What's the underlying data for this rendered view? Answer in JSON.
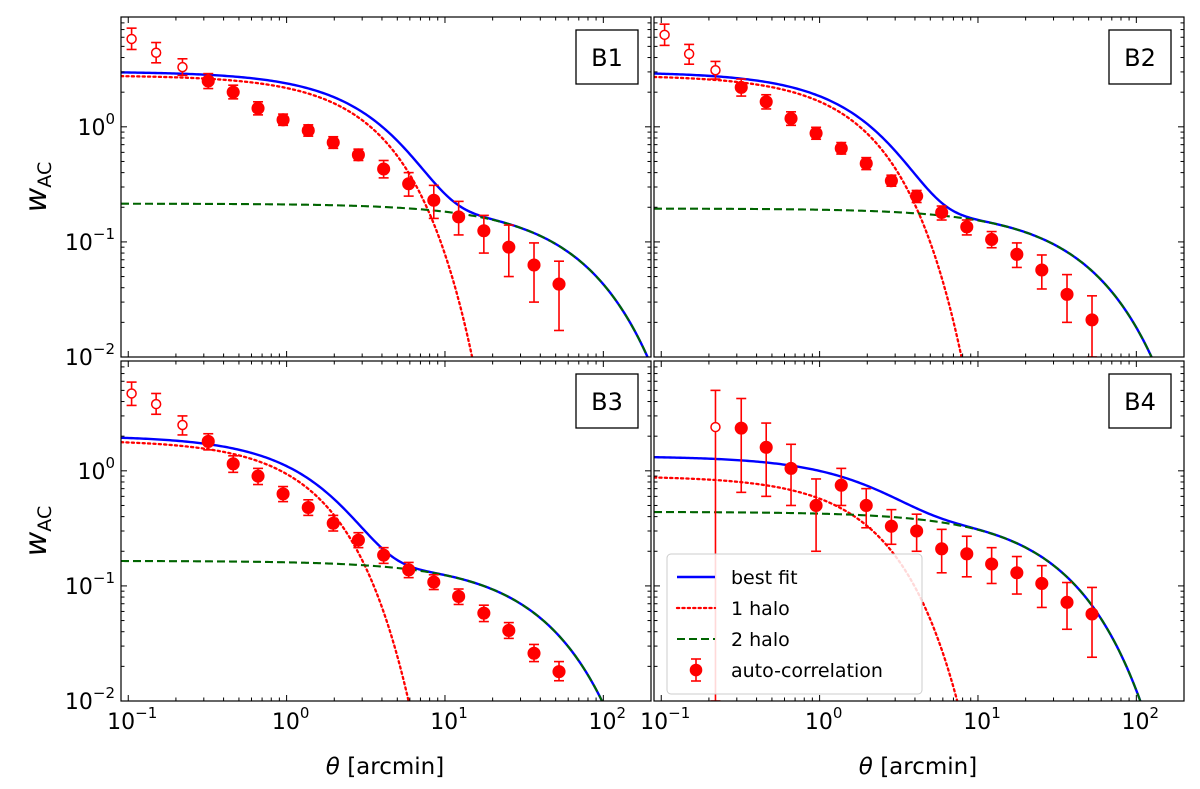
{
  "colors": {
    "best_fit": "#0000ff",
    "one_halo": "#ff0000",
    "two_halo": "#006400",
    "data": "#ff0000"
  },
  "chart_data": {
    "type": "line",
    "xlabel_symbol": "θ",
    "xlabel_unit": "[arcmin]",
    "ylabel_base": "w",
    "ylabel_sub": "AC",
    "xscale": "log",
    "yscale": "log",
    "xlim": [
      0.09,
      200
    ],
    "ylim": [
      0.01,
      9
    ],
    "x_ticks": [
      {
        "base": "10",
        "exp": "−1"
      },
      {
        "base": "10",
        "exp": "0"
      },
      {
        "base": "10",
        "exp": "1"
      },
      {
        "base": "10",
        "exp": "2"
      }
    ],
    "y_ticks": [
      {
        "base": "10",
        "exp": "0"
      },
      {
        "base": "10",
        "exp": "−1"
      },
      {
        "base": "10",
        "exp": "−2"
      }
    ],
    "legend": {
      "location": "lower-left of panel B4",
      "entries": [
        {
          "label": "best fit",
          "style": "solid"
        },
        {
          "label": "1 halo",
          "style": "dotted"
        },
        {
          "label": "2 halo",
          "style": "dashed"
        },
        {
          "label": "auto-correlation",
          "style": "marker"
        }
      ]
    },
    "panels": [
      {
        "label": "B1",
        "model": {
          "one_halo_amp": 2.8,
          "one_halo_cut": 3.3,
          "two_halo_amp": 0.215,
          "two_halo_cut": 62
        },
        "points": [
          {
            "x": 0.105,
            "y": 5.8,
            "err_up": 1.4,
            "err_down": 1.1,
            "open": true
          },
          {
            "x": 0.15,
            "y": 4.4,
            "err_up": 1.0,
            "err_down": 0.8,
            "open": true
          },
          {
            "x": 0.22,
            "y": 3.3,
            "err_up": 0.6,
            "err_down": 0.5,
            "open": true
          },
          {
            "x": 0.32,
            "y": 2.5,
            "err_up": 0.4,
            "err_down": 0.35,
            "open": false
          },
          {
            "x": 0.46,
            "y": 2.0,
            "err_up": 0.3,
            "err_down": 0.25,
            "open": false
          },
          {
            "x": 0.66,
            "y": 1.45,
            "err_up": 0.2,
            "err_down": 0.18,
            "open": false
          },
          {
            "x": 0.95,
            "y": 1.15,
            "err_up": 0.14,
            "err_down": 0.12,
            "open": false
          },
          {
            "x": 1.37,
            "y": 0.93,
            "err_up": 0.11,
            "err_down": 0.1,
            "open": false
          },
          {
            "x": 1.97,
            "y": 0.73,
            "err_up": 0.09,
            "err_down": 0.08,
            "open": false
          },
          {
            "x": 2.84,
            "y": 0.57,
            "err_up": 0.07,
            "err_down": 0.06,
            "open": false
          },
          {
            "x": 4.1,
            "y": 0.43,
            "err_up": 0.08,
            "err_down": 0.07,
            "open": false
          },
          {
            "x": 5.9,
            "y": 0.32,
            "err_up": 0.08,
            "err_down": 0.07,
            "open": false
          },
          {
            "x": 8.5,
            "y": 0.23,
            "err_up": 0.08,
            "err_down": 0.07,
            "open": false
          },
          {
            "x": 12.2,
            "y": 0.165,
            "err_up": 0.06,
            "err_down": 0.05,
            "open": false
          },
          {
            "x": 17.6,
            "y": 0.125,
            "err_up": 0.045,
            "err_down": 0.045,
            "open": false
          },
          {
            "x": 25.3,
            "y": 0.09,
            "err_up": 0.05,
            "err_down": 0.04,
            "open": false
          },
          {
            "x": 36.5,
            "y": 0.063,
            "err_up": 0.035,
            "err_down": 0.033,
            "open": false
          },
          {
            "x": 52.5,
            "y": 0.043,
            "err_up": 0.025,
            "err_down": 0.026,
            "open": false
          }
        ]
      },
      {
        "label": "B2",
        "model": {
          "one_halo_amp": 2.8,
          "one_halo_cut": 1.75,
          "two_halo_amp": 0.195,
          "two_halo_cut": 42
        },
        "points": [
          {
            "x": 0.105,
            "y": 6.3,
            "err_up": 1.5,
            "err_down": 1.2,
            "open": true
          },
          {
            "x": 0.15,
            "y": 4.3,
            "err_up": 0.9,
            "err_down": 0.8,
            "open": true
          },
          {
            "x": 0.22,
            "y": 3.1,
            "err_up": 0.6,
            "err_down": 0.5,
            "open": true
          },
          {
            "x": 0.32,
            "y": 2.2,
            "err_up": 0.4,
            "err_down": 0.35,
            "open": false
          },
          {
            "x": 0.46,
            "y": 1.65,
            "err_up": 0.25,
            "err_down": 0.22,
            "open": false
          },
          {
            "x": 0.66,
            "y": 1.18,
            "err_up": 0.17,
            "err_down": 0.15,
            "open": false
          },
          {
            "x": 0.95,
            "y": 0.88,
            "err_up": 0.11,
            "err_down": 0.1,
            "open": false
          },
          {
            "x": 1.37,
            "y": 0.65,
            "err_up": 0.08,
            "err_down": 0.07,
            "open": false
          },
          {
            "x": 1.97,
            "y": 0.48,
            "err_up": 0.06,
            "err_down": 0.055,
            "open": false
          },
          {
            "x": 2.84,
            "y": 0.34,
            "err_up": 0.04,
            "err_down": 0.035,
            "open": false
          },
          {
            "x": 4.1,
            "y": 0.25,
            "err_up": 0.03,
            "err_down": 0.03,
            "open": false
          },
          {
            "x": 5.9,
            "y": 0.18,
            "err_up": 0.025,
            "err_down": 0.025,
            "open": false
          },
          {
            "x": 8.5,
            "y": 0.135,
            "err_up": 0.02,
            "err_down": 0.02,
            "open": false
          },
          {
            "x": 12.2,
            "y": 0.105,
            "err_up": 0.018,
            "err_down": 0.016,
            "open": false
          },
          {
            "x": 17.6,
            "y": 0.078,
            "err_up": 0.02,
            "err_down": 0.018,
            "open": false
          },
          {
            "x": 25.3,
            "y": 0.057,
            "err_up": 0.02,
            "err_down": 0.018,
            "open": false
          },
          {
            "x": 36.5,
            "y": 0.035,
            "err_up": 0.017,
            "err_down": 0.015,
            "open": false
          },
          {
            "x": 52.5,
            "y": 0.021,
            "err_up": 0.013,
            "err_down": 0.011,
            "open": false
          }
        ]
      },
      {
        "label": "B3",
        "model": {
          "one_halo_amp": 1.85,
          "one_halo_cut": 1.4,
          "two_halo_amp": 0.165,
          "two_halo_cut": 35
        },
        "points": [
          {
            "x": 0.105,
            "y": 4.7,
            "err_up": 1.2,
            "err_down": 1.0,
            "open": true
          },
          {
            "x": 0.15,
            "y": 3.8,
            "err_up": 0.9,
            "err_down": 0.7,
            "open": true
          },
          {
            "x": 0.22,
            "y": 2.5,
            "err_up": 0.5,
            "err_down": 0.45,
            "open": true
          },
          {
            "x": 0.32,
            "y": 1.8,
            "err_up": 0.3,
            "err_down": 0.28,
            "open": false
          },
          {
            "x": 0.46,
            "y": 1.15,
            "err_up": 0.2,
            "err_down": 0.18,
            "open": false
          },
          {
            "x": 0.66,
            "y": 0.9,
            "err_up": 0.15,
            "err_down": 0.14,
            "open": false
          },
          {
            "x": 0.95,
            "y": 0.63,
            "err_up": 0.1,
            "err_down": 0.09,
            "open": false
          },
          {
            "x": 1.37,
            "y": 0.48,
            "err_up": 0.08,
            "err_down": 0.07,
            "open": false
          },
          {
            "x": 1.97,
            "y": 0.35,
            "err_up": 0.06,
            "err_down": 0.05,
            "open": false
          },
          {
            "x": 2.84,
            "y": 0.25,
            "err_up": 0.04,
            "err_down": 0.035,
            "open": false
          },
          {
            "x": 4.1,
            "y": 0.185,
            "err_up": 0.03,
            "err_down": 0.028,
            "open": false
          },
          {
            "x": 5.9,
            "y": 0.138,
            "err_up": 0.022,
            "err_down": 0.02,
            "open": false
          },
          {
            "x": 8.5,
            "y": 0.108,
            "err_up": 0.017,
            "err_down": 0.015,
            "open": false
          },
          {
            "x": 12.2,
            "y": 0.081,
            "err_up": 0.013,
            "err_down": 0.012,
            "open": false
          },
          {
            "x": 17.6,
            "y": 0.058,
            "err_up": 0.01,
            "err_down": 0.009,
            "open": false
          },
          {
            "x": 25.3,
            "y": 0.041,
            "err_up": 0.007,
            "err_down": 0.006,
            "open": false
          },
          {
            "x": 36.5,
            "y": 0.026,
            "err_up": 0.005,
            "err_down": 0.004,
            "open": false
          },
          {
            "x": 52.5,
            "y": 0.018,
            "err_up": 0.004,
            "err_down": 0.003,
            "open": false
          }
        ]
      },
      {
        "label": "B4",
        "model": {
          "one_halo_amp": 0.9,
          "one_halo_cut": 2.0,
          "two_halo_amp": 0.44,
          "two_halo_cut": 28
        },
        "points": [
          {
            "x": 0.22,
            "y": 2.4,
            "err_up": 2.6,
            "err_down": 2.39,
            "open": true
          },
          {
            "x": 0.32,
            "y": 2.35,
            "err_up": 1.9,
            "err_down": 1.7,
            "open": false
          },
          {
            "x": 0.46,
            "y": 1.6,
            "err_up": 1.0,
            "err_down": 1.0,
            "open": false
          },
          {
            "x": 0.66,
            "y": 1.05,
            "err_up": 0.65,
            "err_down": 0.55,
            "open": false
          },
          {
            "x": 0.95,
            "y": 0.5,
            "err_up": 0.35,
            "err_down": 0.3,
            "open": false
          },
          {
            "x": 1.37,
            "y": 0.75,
            "err_up": 0.3,
            "err_down": 0.25,
            "open": false
          },
          {
            "x": 1.97,
            "y": 0.5,
            "err_up": 0.2,
            "err_down": 0.18,
            "open": false
          },
          {
            "x": 2.84,
            "y": 0.33,
            "err_up": 0.13,
            "err_down": 0.1,
            "open": false
          },
          {
            "x": 4.1,
            "y": 0.3,
            "err_up": 0.12,
            "err_down": 0.1,
            "open": false
          },
          {
            "x": 5.9,
            "y": 0.21,
            "err_up": 0.1,
            "err_down": 0.08,
            "open": false
          },
          {
            "x": 8.5,
            "y": 0.19,
            "err_up": 0.08,
            "err_down": 0.07,
            "open": false
          },
          {
            "x": 12.2,
            "y": 0.155,
            "err_up": 0.06,
            "err_down": 0.05,
            "open": false
          },
          {
            "x": 17.6,
            "y": 0.13,
            "err_up": 0.05,
            "err_down": 0.045,
            "open": false
          },
          {
            "x": 25.3,
            "y": 0.105,
            "err_up": 0.045,
            "err_down": 0.04,
            "open": false
          },
          {
            "x": 36.5,
            "y": 0.072,
            "err_up": 0.035,
            "err_down": 0.03,
            "open": false
          },
          {
            "x": 52.5,
            "y": 0.057,
            "err_up": 0.04,
            "err_down": 0.033,
            "open": false
          }
        ]
      }
    ]
  }
}
